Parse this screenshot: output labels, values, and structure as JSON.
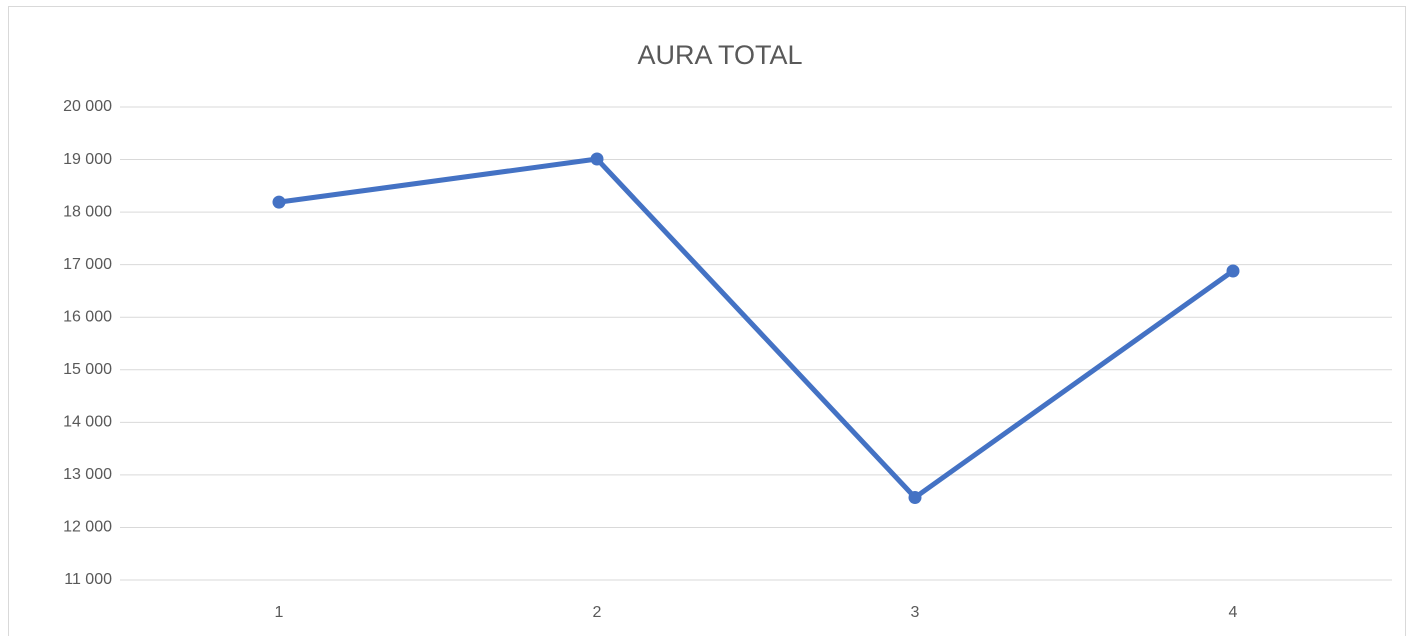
{
  "chart_data": {
    "type": "line",
    "title": "AURA TOTAL",
    "categories": [
      "1",
      "2",
      "3",
      "4"
    ],
    "series": [
      {
        "name": "AURA TOTAL",
        "color": "#4472c4",
        "values": [
          18190,
          19010,
          12570,
          16880
        ]
      }
    ],
    "ylim": [
      11000,
      20000
    ],
    "yticks": [
      {
        "value": 11000,
        "label": "11 000"
      },
      {
        "value": 12000,
        "label": "12 000"
      },
      {
        "value": 13000,
        "label": "13 000"
      },
      {
        "value": 14000,
        "label": "14 000"
      },
      {
        "value": 15000,
        "label": "15 000"
      },
      {
        "value": 16000,
        "label": "16 000"
      },
      {
        "value": 17000,
        "label": "17 000"
      },
      {
        "value": 18000,
        "label": "18 000"
      },
      {
        "value": 19000,
        "label": "19 000"
      },
      {
        "value": 20000,
        "label": "20 000"
      }
    ],
    "grid": true
  }
}
